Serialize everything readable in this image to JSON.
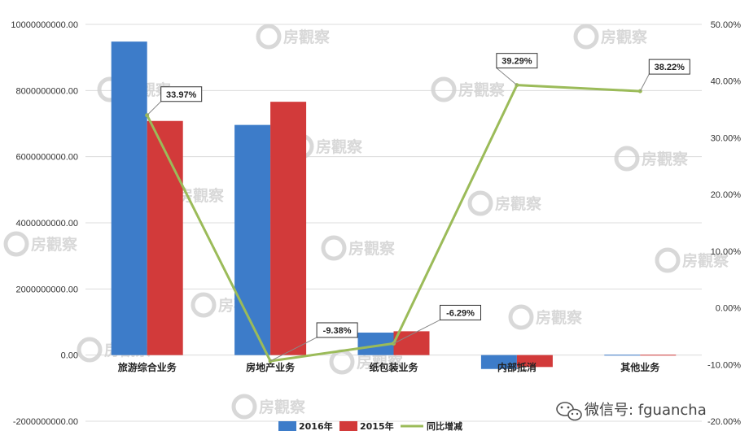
{
  "chart_data": {
    "type": "bar",
    "categories": [
      "旅游综合业务",
      "房地产业务",
      "纸包装业务",
      "内部抵消",
      "其他业务"
    ],
    "series": [
      {
        "name": "2016年",
        "type": "bar",
        "axis": "left",
        "color": "#3d7cc9",
        "values": [
          9480000000,
          6960000000,
          680000000,
          -420000000,
          10000000
        ]
      },
      {
        "name": "2015年",
        "type": "bar",
        "axis": "left",
        "color": "#d23a3a",
        "values": [
          7080000000,
          7660000000,
          720000000,
          -360000000,
          10000000
        ]
      },
      {
        "name": "同比增减",
        "type": "line",
        "axis": "right",
        "color": "#9bbb59",
        "values": [
          33.97,
          -9.38,
          -6.29,
          39.29,
          38.22
        ]
      }
    ],
    "data_labels": [
      "33.97%",
      "-9.38%",
      "-6.29%",
      "39.29%",
      "38.22%"
    ],
    "y_left": {
      "min": -2000000000,
      "max": 10000000000,
      "step": 2000000000,
      "ticks": [
        "-2000000000.00",
        "0.00",
        "2000000000.00",
        "4000000000.00",
        "6000000000.00",
        "8000000000.00",
        "10000000000.00"
      ]
    },
    "y_right": {
      "min": -20,
      "max": 50,
      "step": 10,
      "ticks": [
        "-20.00%",
        "-10.00%",
        "0.00%",
        "10.00%",
        "20.00%",
        "30.00%",
        "40.00%",
        "50.00%"
      ]
    },
    "grid": true,
    "legend_position": "bottom"
  },
  "watermark": {
    "text": "房觀察",
    "color": "#d2d2d2"
  },
  "wechat": {
    "text": "微信号: fguancha",
    "icon": "wechat-icon"
  }
}
